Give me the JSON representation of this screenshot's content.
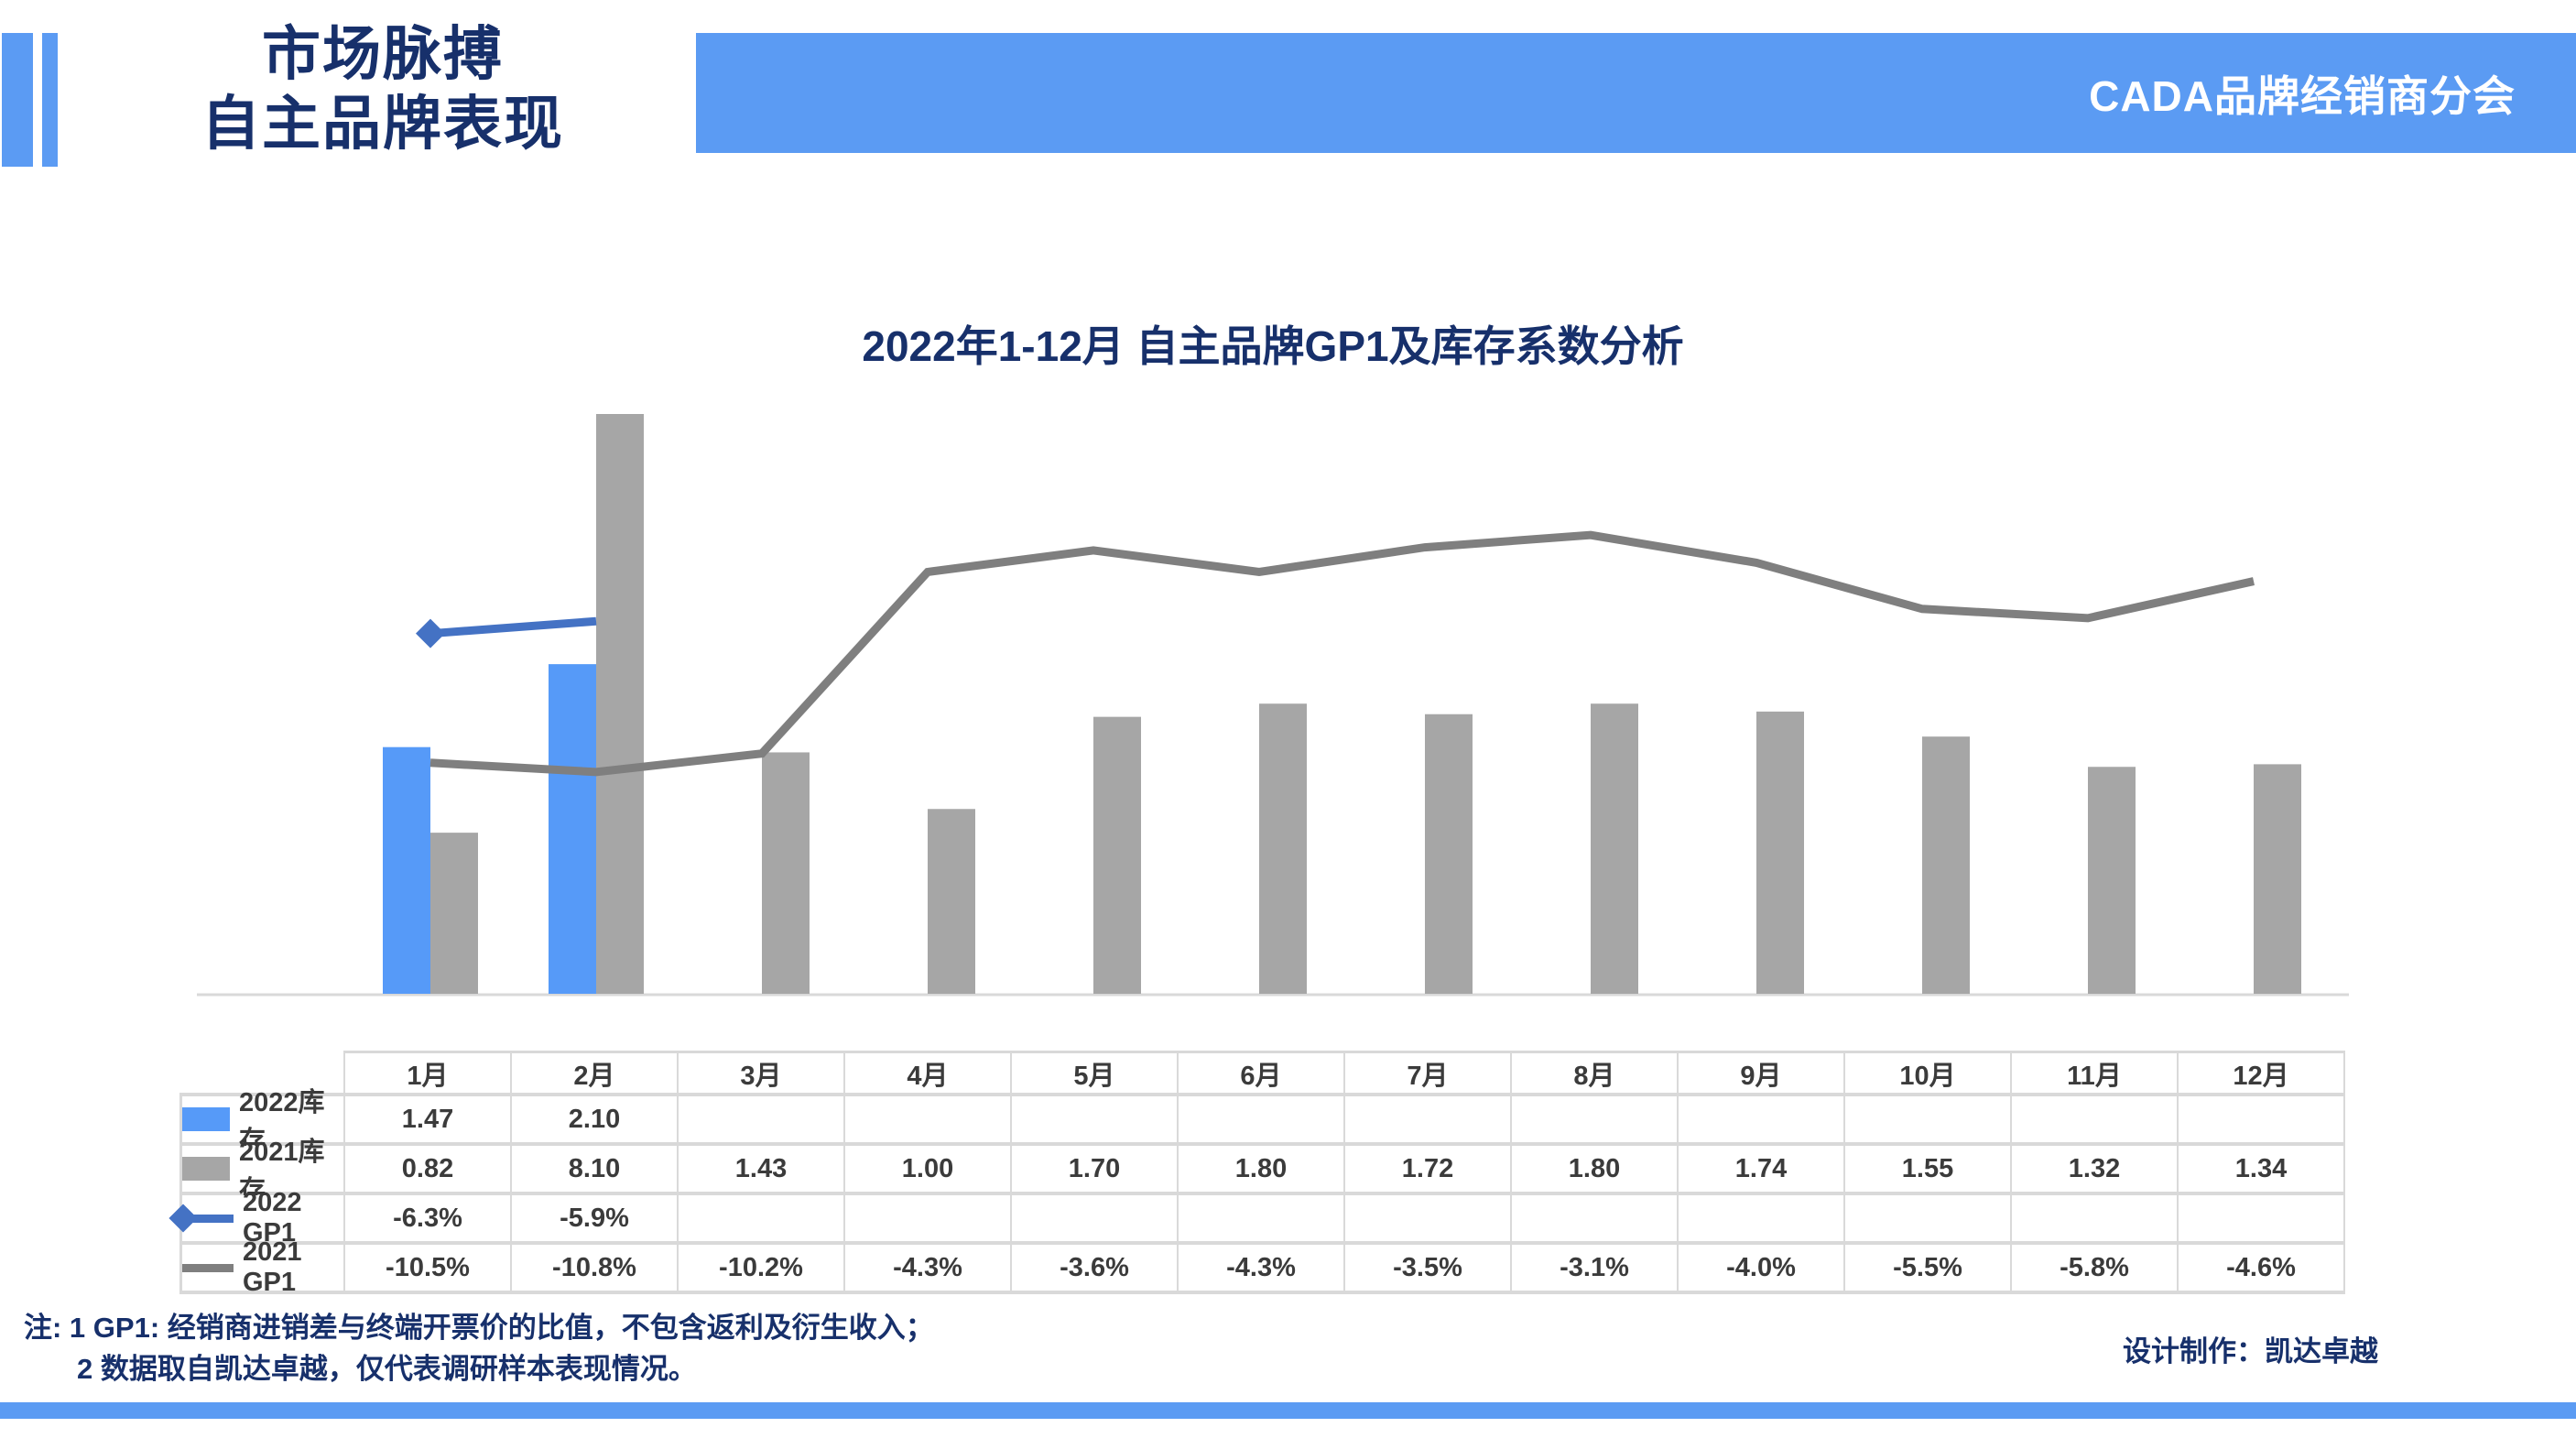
{
  "slide": {
    "title_line1": "市场脉搏",
    "title_line2": "自主品牌表现",
    "header_badge": "CADA品牌经销商分会",
    "notes": {
      "line1": "注: 1  GP1: 经销商进销差与终端开票价的比值，不包含返利及衍生收入；",
      "line2": "2 数据取自凯达卓越，仅代表调研样本表现情况。"
    },
    "credit": "设计制作：凯达卓越"
  },
  "colors": {
    "brand_blue": "#5B9BF3",
    "navy_text": "#17306B",
    "bar_blue": "#569AF8",
    "bar_gray": "#A6A6A6",
    "line_blue": "#4472C4",
    "line_gray": "#7F7F7F",
    "axis_line": "#D9D9D9",
    "table_border": "#D9D9D9",
    "table_text": "#3B3B3B",
    "badge_text": "#FFFFFF"
  },
  "chart_data": {
    "type": "combo",
    "title": "2022年1-12月 自主品牌GP1及库存系数分析",
    "categories": [
      "1月",
      "2月",
      "3月",
      "4月",
      "5月",
      "6月",
      "7月",
      "8月",
      "9月",
      "10月",
      "11月",
      "12月"
    ],
    "series": [
      {
        "name": "2022库存",
        "type": "bar",
        "axis": "left",
        "color": "#569AF8",
        "marker": "none",
        "values": [
          1.47,
          2.1,
          null,
          null,
          null,
          null,
          null,
          null,
          null,
          null,
          null,
          null
        ]
      },
      {
        "name": "2021库存",
        "type": "bar",
        "axis": "left",
        "color": "#A6A6A6",
        "marker": "none",
        "values": [
          0.82,
          8.1,
          1.43,
          1.0,
          1.7,
          1.8,
          1.72,
          1.8,
          1.74,
          1.55,
          1.32,
          1.34
        ]
      },
      {
        "name": "2022 GP1",
        "type": "line",
        "axis": "right",
        "color": "#4472C4",
        "marker": "diamond",
        "values": [
          -6.3,
          -5.9,
          null,
          null,
          null,
          null,
          null,
          null,
          null,
          null,
          null,
          null
        ]
      },
      {
        "name": "2021 GP1",
        "type": "line",
        "axis": "right",
        "color": "#7F7F7F",
        "marker": "none",
        "values": [
          -10.5,
          -10.8,
          -10.2,
          -4.3,
          -3.6,
          -4.3,
          -3.5,
          -3.1,
          -4.0,
          -5.5,
          -5.8,
          -4.6
        ]
      }
    ],
    "right_axis_units": "%",
    "gridlines": false,
    "axes_labels_visible": false,
    "legend_position": "table-left-column",
    "clipped_bars": [
      "2021库存 2月 (8.10) clipped at plot top"
    ]
  },
  "table": {
    "columns": [
      "1月",
      "2月",
      "3月",
      "4月",
      "5月",
      "6月",
      "7月",
      "8月",
      "9月",
      "10月",
      "11月",
      "12月"
    ],
    "rows": [
      {
        "label": "2022库存",
        "legend": {
          "type": "bar",
          "color": "#569AF8",
          "marker": "none"
        },
        "cells": [
          "1.47",
          "2.10",
          "",
          "",
          "",
          "",
          "",
          "",
          "",
          "",
          "",
          ""
        ]
      },
      {
        "label": "2021库存",
        "legend": {
          "type": "bar",
          "color": "#A6A6A6",
          "marker": "none"
        },
        "cells": [
          "0.82",
          "8.10",
          "1.43",
          "1.00",
          "1.70",
          "1.80",
          "1.72",
          "1.80",
          "1.74",
          "1.55",
          "1.32",
          "1.34"
        ]
      },
      {
        "label": "2022 GP1",
        "legend": {
          "type": "line",
          "color": "#4472C4",
          "marker": "diamond"
        },
        "cells": [
          "-6.3%",
          "-5.9%",
          "",
          "",
          "",
          "",
          "",
          "",
          "",
          "",
          "",
          ""
        ]
      },
      {
        "label": "2021 GP1",
        "legend": {
          "type": "line",
          "color": "#7F7F7F",
          "marker": "none"
        },
        "cells": [
          "-10.5%",
          "-10.8%",
          "-10.2%",
          "-4.3%",
          "-3.6%",
          "-4.3%",
          "-3.5%",
          "-3.1%",
          "-4.0%",
          "-5.5%",
          "-5.8%",
          "-4.6%"
        ]
      }
    ]
  }
}
